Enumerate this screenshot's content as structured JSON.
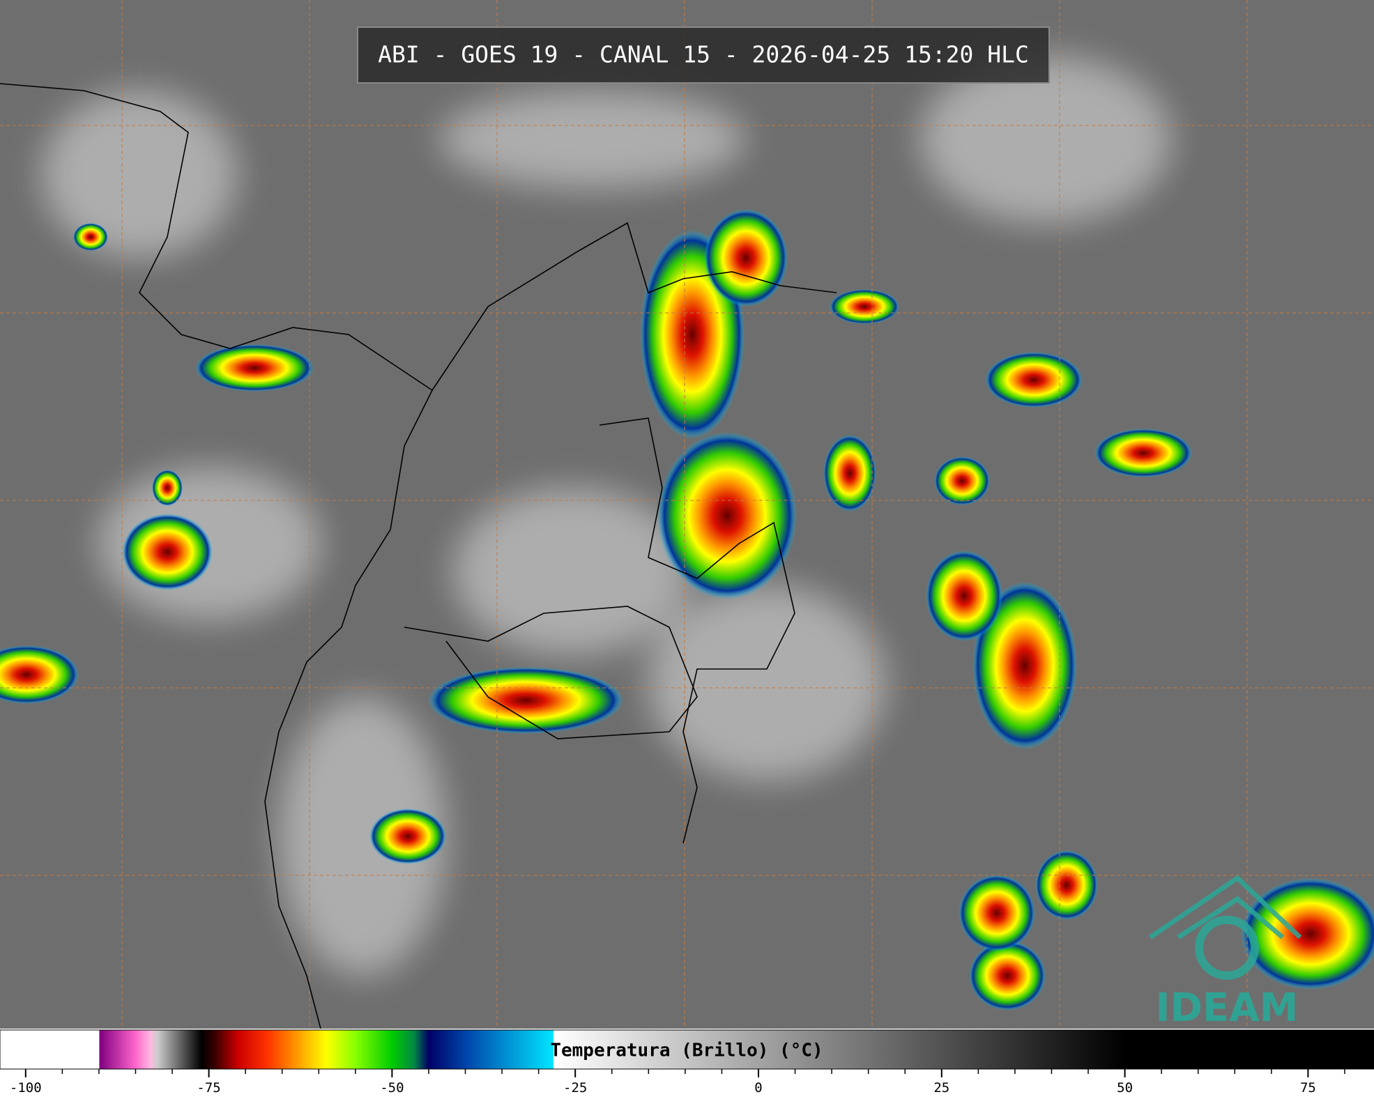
{
  "header": {
    "title": "ABI - GOES 19 - CANAL 15 - 2026-04-25 15:20 HLC"
  },
  "logo": {
    "text": "IDEAM"
  },
  "chart_data": {
    "type": "colorbar",
    "label": "Temperatura (Brillo) (°C)",
    "xlim": [
      -103.5,
      84
    ],
    "xticks": [
      -100,
      -75,
      -50,
      -25,
      0,
      25,
      50,
      75
    ],
    "minor_xticks": [
      -95,
      -90,
      -85,
      -80,
      -70,
      -65,
      -60,
      -55,
      -45,
      -40,
      -35,
      -30,
      -20,
      -15,
      -10,
      -5,
      5,
      10,
      15,
      20,
      30,
      35,
      40,
      45,
      55,
      60,
      65,
      70,
      80
    ],
    "color_stops": [
      {
        "value": -103.5,
        "color": "#ffffff"
      },
      {
        "value": -90,
        "color": "#ffffff"
      },
      {
        "value": -89.9,
        "color": "#800080"
      },
      {
        "value": -85,
        "color": "#ff66cc"
      },
      {
        "value": -83,
        "color": "#ffb8e0"
      },
      {
        "value": -82,
        "color": "#cccccc"
      },
      {
        "value": -76,
        "color": "#000000"
      },
      {
        "value": -74,
        "color": "#400000"
      },
      {
        "value": -71,
        "color": "#cc0000"
      },
      {
        "value": -67,
        "color": "#ff3300"
      },
      {
        "value": -63,
        "color": "#ff9900"
      },
      {
        "value": -59,
        "color": "#ffff00"
      },
      {
        "value": -55,
        "color": "#88ff00"
      },
      {
        "value": -50,
        "color": "#00cc00"
      },
      {
        "value": -47,
        "color": "#008844"
      },
      {
        "value": -45,
        "color": "#000066"
      },
      {
        "value": -40,
        "color": "#0044aa"
      },
      {
        "value": -28,
        "color": "#00e5ff"
      },
      {
        "value": -27.9,
        "color": "#ffffff"
      },
      {
        "value": 50,
        "color": "#000000"
      },
      {
        "value": 84,
        "color": "#000000"
      }
    ]
  }
}
